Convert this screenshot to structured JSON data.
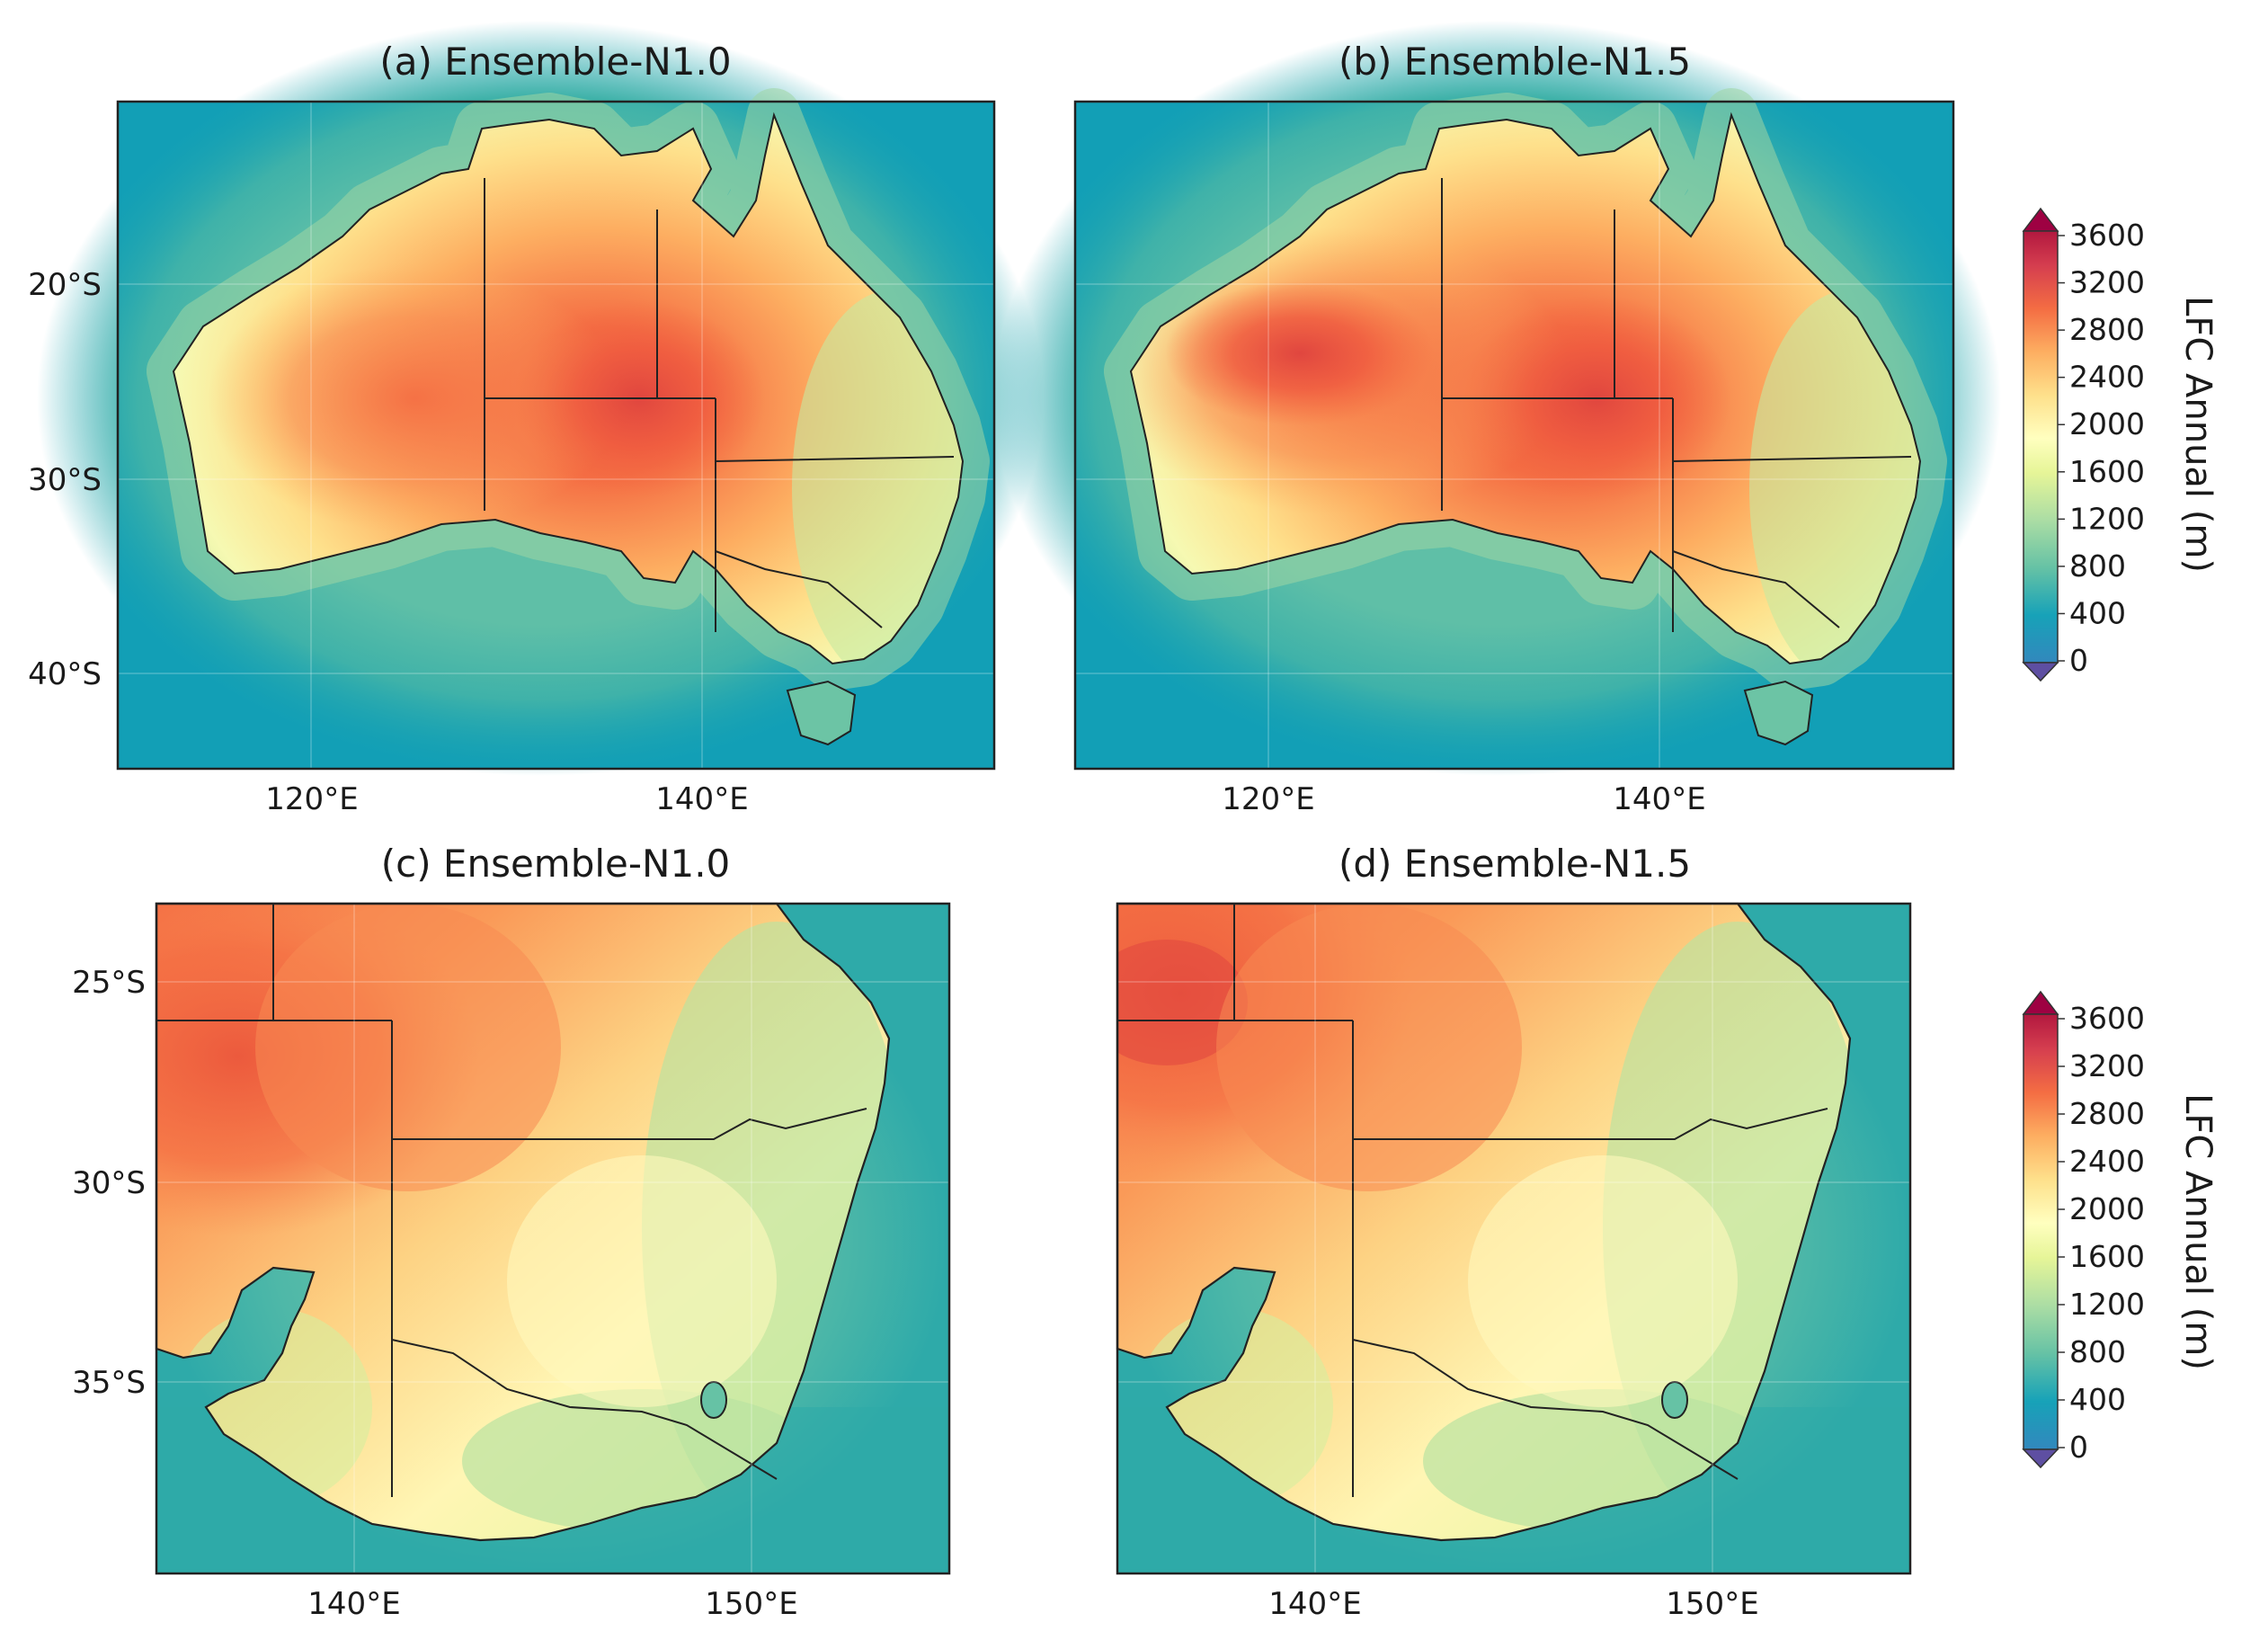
{
  "chart_data": {
    "type": "map",
    "variable": "LFC Annual",
    "units": "m",
    "colorbar": {
      "label": "LFC Annual (m)",
      "ticks": [
        "3600",
        "3200",
        "2800",
        "2400",
        "2000",
        "1600",
        "1200",
        "800",
        "400",
        "0"
      ],
      "range": [
        0,
        3600
      ],
      "step": 200,
      "extend": "both",
      "colormap": "Spectral_r",
      "stops": [
        "#5e4fa2",
        "#3288bd",
        "#17a2b8",
        "#66c2a5",
        "#abdda4",
        "#e6f598",
        "#ffffbf",
        "#fee08b",
        "#fdae61",
        "#f46d43",
        "#d53e4f",
        "#9e0142"
      ]
    },
    "panels": [
      {
        "title": "(a) Ensemble-N1.0",
        "region": "Australia",
        "lon_range": [
          110,
          155
        ],
        "lat_range": [
          -45,
          -10
        ],
        "xticks": [
          "120°E",
          "140°E"
        ],
        "yticks": [
          "20°S",
          "30°S",
          "40°S"
        ],
        "max_area": "South Australia / Queensland border near 27°S 137°E",
        "max_value_approx": 3100
      },
      {
        "title": "(b) Ensemble-N1.5",
        "region": "Australia",
        "lon_range": [
          110,
          155
        ],
        "lat_range": [
          -45,
          -10
        ],
        "xticks": [
          "120°E",
          "140°E"
        ],
        "yticks": [],
        "max_area": "Western Australia interior and near 27°S 137°E",
        "max_value_approx": 3200
      },
      {
        "title": "(c) Ensemble-N1.0",
        "region": "South-east Australia",
        "lon_range": [
          135,
          155
        ],
        "lat_range": [
          -40,
          -23
        ],
        "xticks": [
          "140°E",
          "150°E"
        ],
        "yticks": [
          "25°S",
          "30°S",
          "35°S"
        ],
        "max_area": "north-west corner",
        "max_value_approx": 2900
      },
      {
        "title": "(d) Ensemble-N1.5",
        "region": "South-east Australia",
        "lon_range": [
          135,
          155
        ],
        "lat_range": [
          -40,
          -23
        ],
        "xticks": [
          "140°E",
          "150°E"
        ],
        "yticks": [],
        "max_area": "north-west corner",
        "max_value_approx": 3100
      }
    ]
  }
}
